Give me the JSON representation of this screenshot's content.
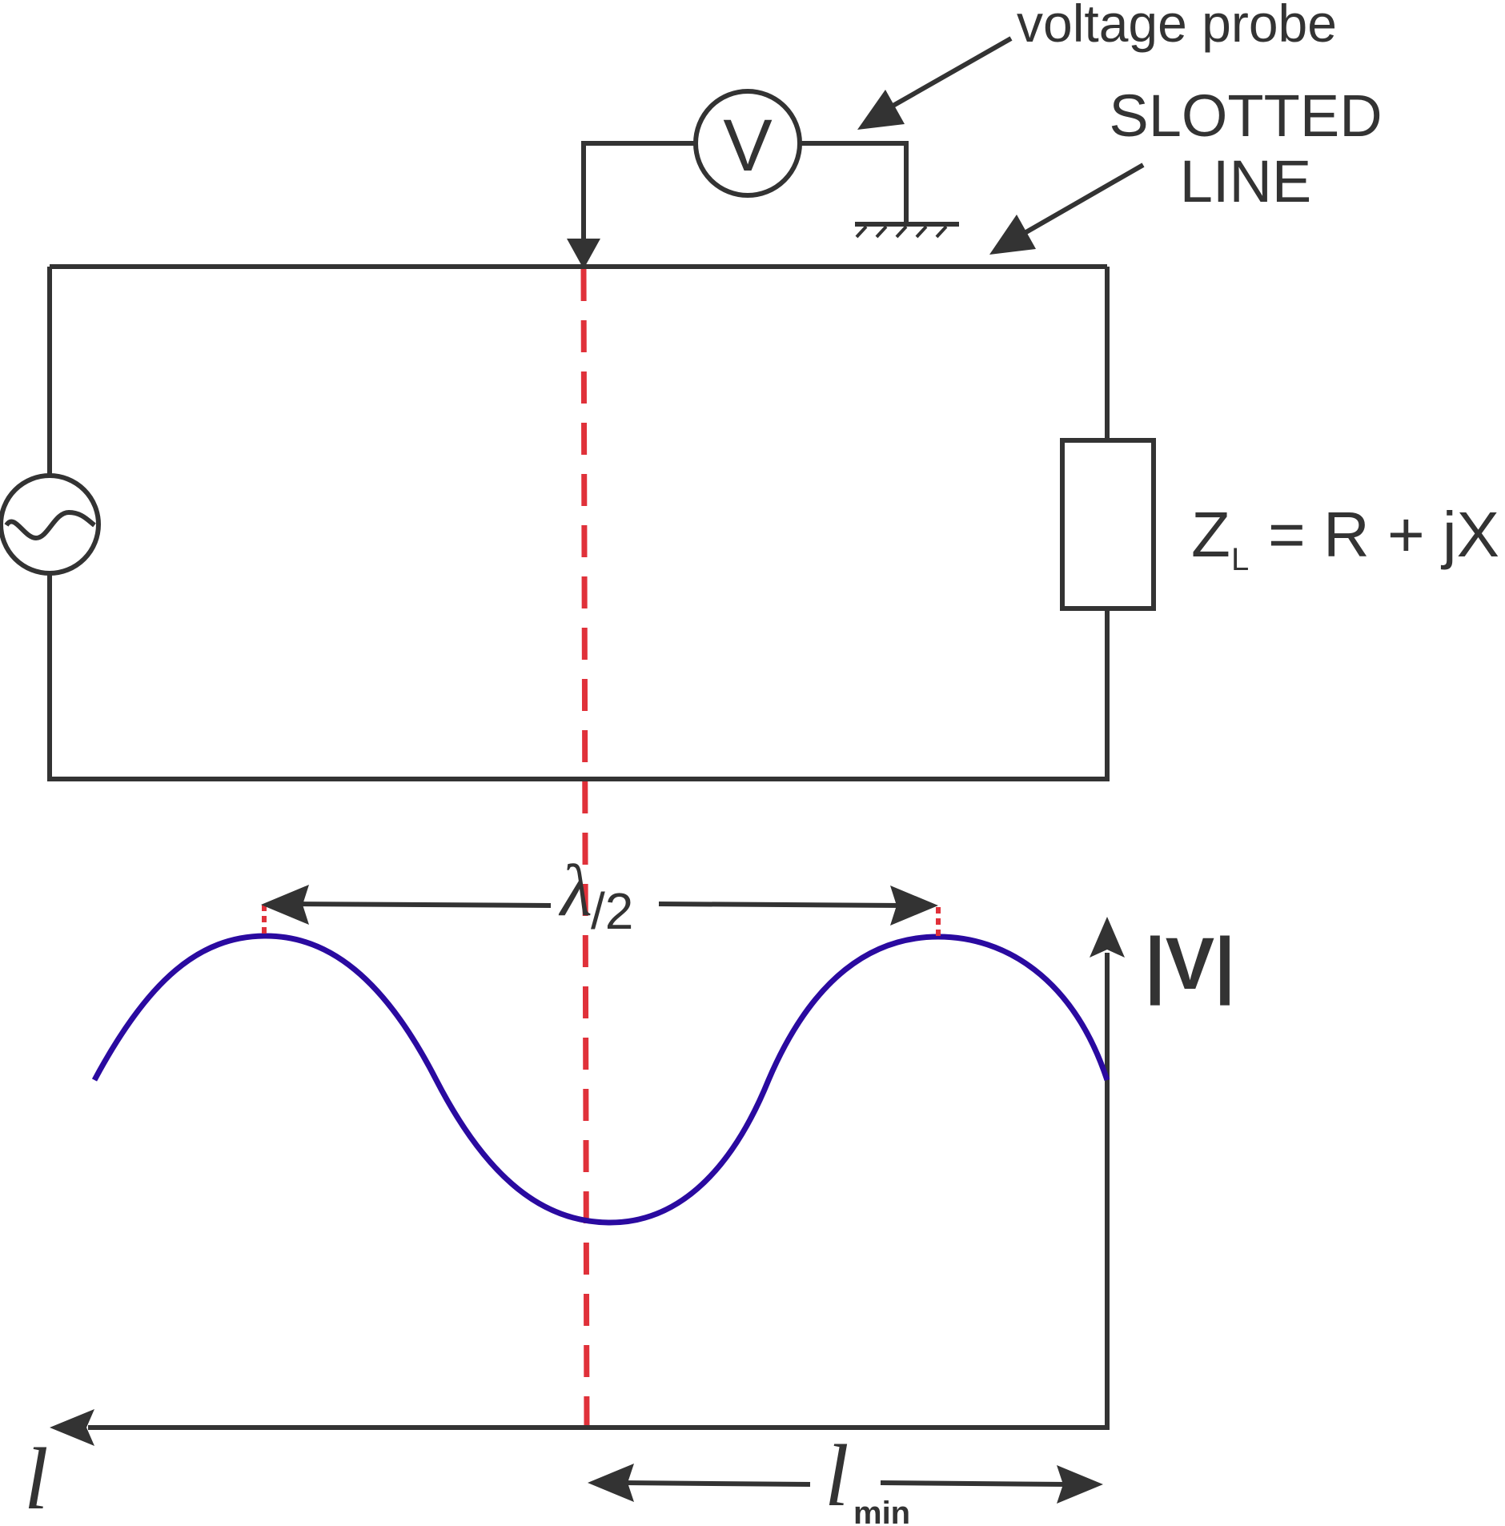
{
  "labels": {
    "voltage_probe": "voltage probe",
    "slotted_line_1": "SLOTTED",
    "slotted_line_2": "LINE",
    "voltmeter_symbol": "V",
    "load_z": "Z",
    "load_sub": "L",
    "load_rest": "= R + jX",
    "axis_v": "|V|",
    "lambda": "λ",
    "lambda_den": "/2",
    "axis_l": "l",
    "lmin_l": "l",
    "lmin_sub": "min"
  },
  "colors": {
    "wire": "#333333",
    "dashed_marker": "#e0313a",
    "standing_wave": "#2a0aa0"
  }
}
